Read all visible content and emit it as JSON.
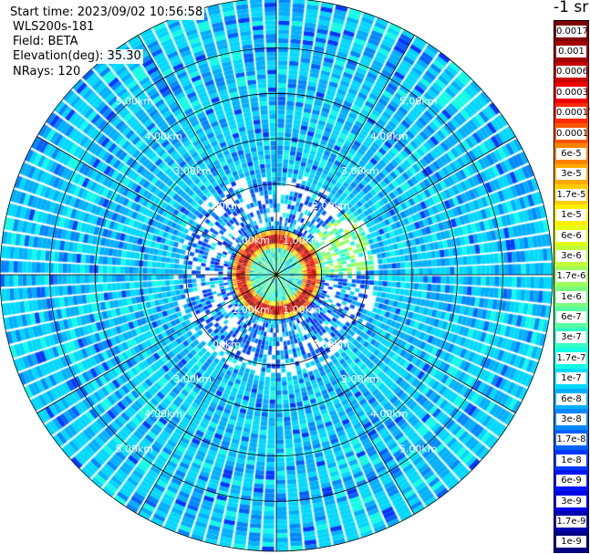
{
  "header": {
    "start_time": "Start time: 2023/09/02 10:56:58",
    "instrument": "WLS200s-181",
    "field": "Field: BETA",
    "elevation": "Elevation(deg): 35.30",
    "nrays": "NRays: 120"
  },
  "chart_data": {
    "type": "heatmap",
    "projection": "polar (PPI scan)",
    "field": "BETA",
    "n_rays": 120,
    "elevation_deg": 35.3,
    "range_ring_labels": [
      "1.00km",
      "2.00km",
      "3.00km",
      "4.00km",
      "5.00km"
    ],
    "range_rings_km": [
      1,
      2,
      3,
      4,
      5
    ],
    "max_range_km": 6.1,
    "grid": true,
    "colorbar": {
      "title": "-1 sr",
      "placement": "right",
      "scale": "log",
      "labels": [
        "0.0017",
        "0.001",
        "0.0006",
        "0.0003",
        "0.00017",
        "0.0001",
        "6e-5",
        "3e-5",
        "1.7e-5",
        "1e-5",
        "6e-6",
        "3e-6",
        "1.7e-6",
        "1e-6",
        "6e-7",
        "3e-7",
        "1.7e-7",
        "1e-7",
        "6e-8",
        "3e-8",
        "1.7e-8",
        "1e-8",
        "6e-9",
        "3e-9",
        "1.7e-9",
        "1e-9"
      ],
      "colors": [
        "#7f0000",
        "#a10000",
        "#c80000",
        "#ee0000",
        "#ff2a00",
        "#ff5500",
        "#ff8200",
        "#ffaa00",
        "#ffcc00",
        "#ffee00",
        "#e4ff13",
        "#c1ff36",
        "#9dff5a",
        "#7aff7d",
        "#56ffa1",
        "#33ffc4",
        "#13fce4",
        "#00d8ff",
        "#00b0ff",
        "#0088ff",
        "#0060ff",
        "#0038ff",
        "#0014ff",
        "#0000e8",
        "#0000b0",
        "#000080"
      ]
    },
    "structure": {
      "background_level": "1e-8 to 1e-7",
      "ring_level": "3e-5 to 0.001",
      "ring_radius_km": 0.75,
      "plume_level": "6e-7 to 6e-6",
      "plume_direction": "east-northeast"
    }
  }
}
